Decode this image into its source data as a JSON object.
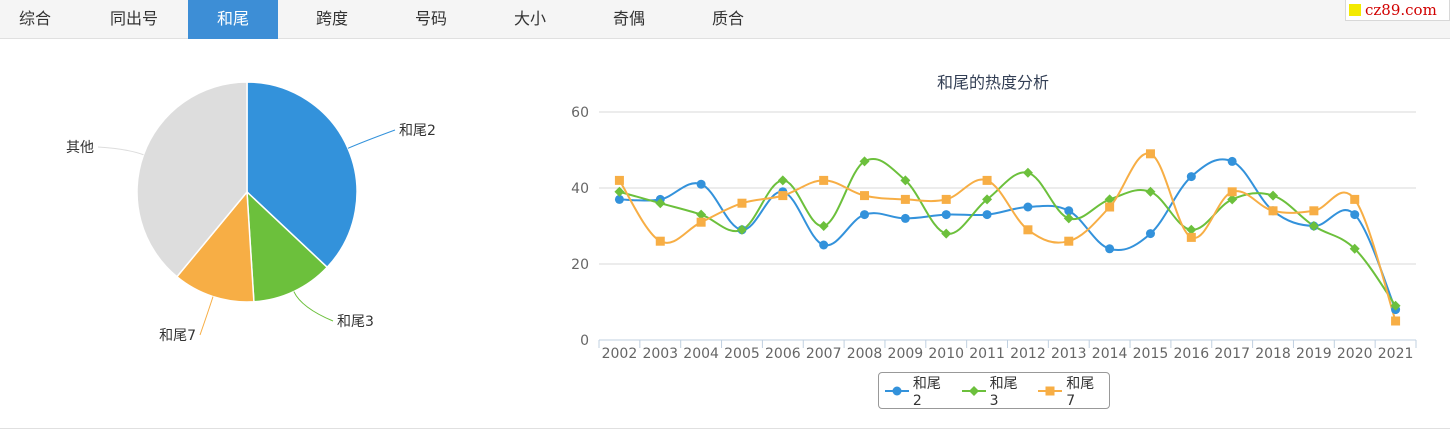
{
  "tabs": [
    {
      "label": "综合",
      "name": "tab-overview"
    },
    {
      "label": "同出号",
      "name": "tab-same-number"
    },
    {
      "label": "和尾",
      "name": "tab-sum-tail"
    },
    {
      "label": "跨度",
      "name": "tab-span"
    },
    {
      "label": "号码",
      "name": "tab-number"
    },
    {
      "label": "大小",
      "name": "tab-size"
    },
    {
      "label": "奇偶",
      "name": "tab-odd-even"
    },
    {
      "label": "质合",
      "name": "tab-prime-composite"
    }
  ],
  "active_tab": 2,
  "logo": {
    "text": "cz89.com"
  },
  "colors": {
    "blue": "#3392db",
    "green": "#6cc03c",
    "orange": "#f7ae45",
    "gray": "#dddddd"
  },
  "chart_data": [
    {
      "type": "pie",
      "slices": [
        {
          "label": "和尾2",
          "value": 37,
          "color": "#3392db"
        },
        {
          "label": "和尾3",
          "value": 12,
          "color": "#6cc03c"
        },
        {
          "label": "和尾7",
          "value": 12,
          "color": "#f7ae45"
        },
        {
          "label": "其他",
          "value": 39,
          "color": "#dddddd"
        }
      ]
    },
    {
      "type": "line",
      "title": "和尾的热度分析",
      "categories": [
        "2002",
        "2003",
        "2004",
        "2005",
        "2006",
        "2007",
        "2008",
        "2009",
        "2010",
        "2011",
        "2012",
        "2013",
        "2014",
        "2015",
        "2016",
        "2017",
        "2018",
        "2019",
        "2020",
        "2021"
      ],
      "yticks": [
        0,
        20,
        40,
        60
      ],
      "ylim": [
        0,
        60
      ],
      "series": [
        {
          "name": "和尾2",
          "color": "#3392db",
          "marker": "circle",
          "values": [
            37,
            37,
            41,
            29,
            39,
            25,
            33,
            32,
            33,
            33,
            35,
            34,
            24,
            28,
            43,
            47,
            34,
            30,
            33,
            8
          ]
        },
        {
          "name": "和尾3",
          "color": "#6cc03c",
          "marker": "diamond",
          "values": [
            39,
            36,
            33,
            29,
            42,
            30,
            47,
            42,
            28,
            37,
            44,
            32,
            37,
            39,
            29,
            37,
            38,
            30,
            24,
            9
          ]
        },
        {
          "name": "和尾7",
          "color": "#f7ae45",
          "marker": "square",
          "values": [
            42,
            26,
            31,
            36,
            38,
            42,
            38,
            37,
            37,
            42,
            29,
            26,
            35,
            49,
            27,
            39,
            34,
            34,
            37,
            5
          ]
        }
      ]
    }
  ]
}
